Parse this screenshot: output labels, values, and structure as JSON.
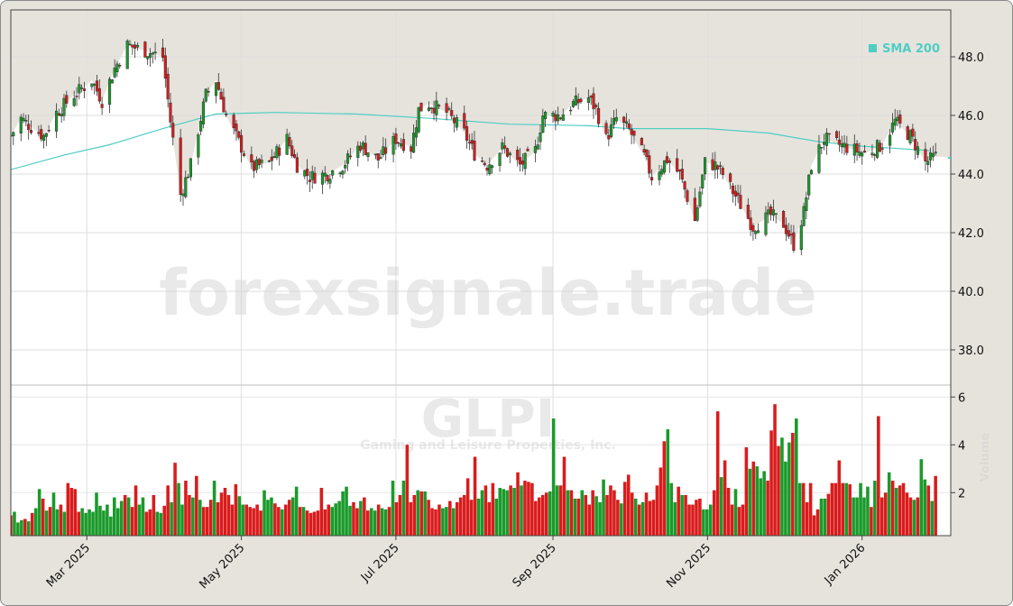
{
  "chart_data": [
    {
      "type": "candlestick",
      "panel": "price",
      "symbol": "GLPI",
      "company": "Gaming and Leisure Properties, Inc.",
      "watermark": "forexsignale.trade",
      "ylim": [
        36.8,
        49.6
      ],
      "y_ticks": [
        "38.0",
        "40.0",
        "42.0",
        "44.0",
        "46.0",
        "48.0"
      ],
      "last_price": 44.55,
      "colors": {
        "up": "#1a9a2a",
        "down": "#d91c1c",
        "sma": "#4ecdc4"
      },
      "series": [
        {
          "name": "SMA 200",
          "points": [
            [
              "2025-01-30",
              44.15
            ],
            [
              "2025-02-20",
              44.65
            ],
            [
              "2025-03-10",
              45.0
            ],
            [
              "2025-03-31",
              45.55
            ],
            [
              "2025-04-21",
              46.05
            ],
            [
              "2025-05-15",
              46.1
            ],
            [
              "2025-06-15",
              46.05
            ],
            [
              "2025-07-15",
              45.9
            ],
            [
              "2025-08-15",
              45.7
            ],
            [
              "2025-09-15",
              45.65
            ],
            [
              "2025-10-01",
              45.55
            ],
            [
              "2025-11-01",
              45.55
            ],
            [
              "2025-11-25",
              45.4
            ],
            [
              "2025-12-15",
              45.1
            ],
            [
              "2026-01-01",
              44.95
            ],
            [
              "2026-01-28",
              44.8
            ]
          ]
        }
      ],
      "price_path": [
        [
          "2025-01-30",
          45.3
        ],
        [
          "2025-02-03",
          45.9
        ],
        [
          "2025-02-07",
          45.6
        ],
        [
          "2025-02-12",
          45.3
        ],
        [
          "2025-02-17",
          46.1
        ],
        [
          "2025-02-24",
          46.7
        ],
        [
          "2025-03-03",
          47.2
        ],
        [
          "2025-03-07",
          46.5
        ],
        [
          "2025-03-12",
          47.6
        ],
        [
          "2025-03-17",
          48.4
        ],
        [
          "2025-03-24",
          48.2
        ],
        [
          "2025-03-31",
          48.0
        ],
        [
          "2025-04-03",
          45.8
        ],
        [
          "2025-04-07",
          43.3
        ],
        [
          "2025-04-11",
          44.3
        ],
        [
          "2025-04-17",
          46.7
        ],
        [
          "2025-04-21",
          47.2
        ],
        [
          "2025-04-25",
          46.0
        ],
        [
          "2025-04-30",
          45.1
        ],
        [
          "2025-05-05",
          44.2
        ],
        [
          "2025-05-12",
          44.4
        ],
        [
          "2025-05-19",
          45.2
        ],
        [
          "2025-05-23",
          44.3
        ],
        [
          "2025-05-28",
          43.9
        ],
        [
          "2025-06-04",
          44.0
        ],
        [
          "2025-06-10",
          44.3
        ],
        [
          "2025-06-17",
          45.0
        ],
        [
          "2025-06-24",
          44.5
        ],
        [
          "2025-07-01",
          45.2
        ],
        [
          "2025-07-07",
          44.9
        ],
        [
          "2025-07-10",
          46.2
        ],
        [
          "2025-07-14",
          46.4
        ],
        [
          "2025-07-21",
          46.1
        ],
        [
          "2025-07-28",
          45.4
        ],
        [
          "2025-08-01",
          44.7
        ],
        [
          "2025-08-06",
          44.3
        ],
        [
          "2025-08-12",
          44.9
        ],
        [
          "2025-08-19",
          44.3
        ],
        [
          "2025-08-25",
          44.8
        ],
        [
          "2025-08-28",
          46.0
        ],
        [
          "2025-09-04",
          46.0
        ],
        [
          "2025-09-09",
          46.4
        ],
        [
          "2025-09-15",
          46.6
        ],
        [
          "2025-09-18",
          46.2
        ],
        [
          "2025-09-22",
          45.2
        ],
        [
          "2025-09-26",
          45.9
        ],
        [
          "2025-10-01",
          45.5
        ],
        [
          "2025-10-07",
          44.6
        ],
        [
          "2025-10-10",
          43.9
        ],
        [
          "2025-10-16",
          44.5
        ],
        [
          "2025-10-21",
          44.0
        ],
        [
          "2025-10-27",
          42.4
        ],
        [
          "2025-10-31",
          44.4
        ],
        [
          "2025-11-04",
          44.3
        ],
        [
          "2025-11-07",
          44.0
        ],
        [
          "2025-11-13",
          43.1
        ],
        [
          "2025-11-19",
          42.2
        ],
        [
          "2025-11-26",
          42.6
        ],
        [
          "2025-12-01",
          42.3
        ],
        [
          "2025-12-05",
          41.6
        ],
        [
          "2025-12-09",
          42.7
        ],
        [
          "2025-12-12",
          44.3
        ],
        [
          "2025-12-17",
          45.2
        ],
        [
          "2025-12-23",
          45.0
        ],
        [
          "2026-01-02",
          44.7
        ],
        [
          "2026-01-09",
          45.0
        ],
        [
          "2026-01-14",
          45.8
        ],
        [
          "2026-01-20",
          45.3
        ],
        [
          "2026-01-26",
          44.4
        ],
        [
          "2026-01-30",
          44.6
        ]
      ]
    },
    {
      "type": "bar",
      "panel": "volume",
      "ylabel": "Volume",
      "units": "million",
      "ylim": [
        0.2,
        6.5
      ],
      "y_ticks": [
        "2",
        "4",
        "6"
      ],
      "values": [
        1.05,
        1.2,
        0.75,
        0.85,
        0.9,
        0.8,
        1.15,
        1.35,
        2.15,
        1.75,
        1.25,
        1.4,
        2.0,
        1.3,
        1.5,
        1.2,
        2.4,
        2.2,
        2.15,
        1.2,
        1.35,
        1.15,
        1.3,
        1.2,
        2.0,
        1.45,
        1.25,
        1.5,
        1.0,
        1.8,
        1.35,
        1.65,
        1.9,
        1.8,
        1.4,
        2.3,
        1.5,
        1.8,
        1.2,
        1.3,
        1.9,
        1.2,
        1.15,
        1.45,
        2.3,
        1.6,
        3.25,
        2.4,
        1.5,
        2.5,
        1.9,
        1.8,
        2.7,
        1.7,
        1.4,
        1.4,
        1.7,
        2.5,
        1.6,
        2.0,
        2.2,
        1.9,
        1.5,
        2.35,
        1.85,
        1.5,
        1.5,
        1.4,
        1.35,
        1.5,
        1.25,
        2.1,
        1.7,
        1.8,
        1.55,
        1.4,
        1.3,
        1.5,
        1.7,
        1.8,
        2.25,
        1.4,
        1.4,
        1.25,
        1.15,
        1.2,
        1.25,
        2.2,
        1.3,
        1.5,
        1.4,
        1.55,
        1.65,
        2.05,
        2.25,
        1.45,
        1.6,
        1.35,
        1.65,
        1.8,
        1.25,
        1.35,
        1.25,
        1.5,
        1.35,
        1.3,
        1.4,
        2.5,
        1.6,
        1.9,
        2.5,
        4.0,
        1.6,
        1.9,
        2.1,
        2.05,
        2.05,
        1.7,
        1.35,
        1.3,
        1.5,
        1.35,
        1.4,
        1.65,
        1.35,
        1.6,
        1.8,
        1.9,
        2.6,
        1.7,
        3.5,
        1.75,
        2.1,
        2.3,
        1.6,
        2.4,
        1.75,
        2.2,
        2.15,
        2.1,
        2.3,
        2.2,
        2.85,
        2.3,
        2.5,
        2.45,
        2.4,
        1.65,
        1.8,
        1.9,
        2.0,
        2.05,
        5.1,
        2.3,
        2.3,
        3.5,
        2.1,
        2.1,
        1.75,
        1.75,
        2.1,
        1.9,
        1.5,
        2.1,
        1.85,
        1.6,
        2.55,
        1.9,
        2.3,
        2.1,
        1.7,
        1.55,
        2.45,
        2.75,
        2.0,
        1.75,
        1.5,
        1.6,
        2.0,
        1.65,
        1.7,
        2.3,
        3.05,
        4.15,
        4.65,
        2.4,
        1.6,
        2.25,
        1.9,
        1.9,
        1.5,
        1.5,
        1.7,
        1.75,
        1.3,
        1.3,
        1.5,
        2.1,
        5.4,
        2.65,
        3.35,
        2.2,
        1.5,
        2.15,
        1.4,
        1.5,
        3.9,
        3.0,
        3.3,
        3.1,
        2.6,
        2.9,
        2.5,
        4.6,
        5.7,
        3.95,
        4.3,
        3.3,
        4.1,
        4.5,
        5.1,
        2.4,
        2.4,
        1.6,
        2.4,
        1.05,
        1.3,
        1.75,
        1.75,
        1.95,
        2.4,
        2.4,
        3.35,
        2.4,
        2.4,
        2.35,
        1.8,
        1.8,
        2.4,
        1.8,
        2.25,
        1.4,
        2.5,
        5.2,
        1.8,
        2.0,
        2.85,
        2.5,
        2.2,
        2.3,
        2.4,
        2.0,
        1.8,
        1.7,
        1.8,
        3.4,
        2.55,
        2.3,
        1.65,
        2.7
      ]
    }
  ],
  "x_ticks": [
    {
      "label": "Mar 2025",
      "date": "2025-03-01"
    },
    {
      "label": "May 2025",
      "date": "2025-05-01"
    },
    {
      "label": "Jul 2025",
      "date": "2025-07-01"
    },
    {
      "label": "Sep 2025",
      "date": "2025-09-01"
    },
    {
      "label": "Nov 2025",
      "date": "2025-11-01"
    },
    {
      "label": "Jan 2026",
      "date": "2026-01-01"
    }
  ],
  "legend": {
    "label": "SMA 200",
    "position": "top-right"
  },
  "labels": {
    "watermark": "forexsignale.trade",
    "symbol": "GLPI",
    "company": "Gaming and Leisure Properties, Inc.",
    "volume": "Volume"
  }
}
